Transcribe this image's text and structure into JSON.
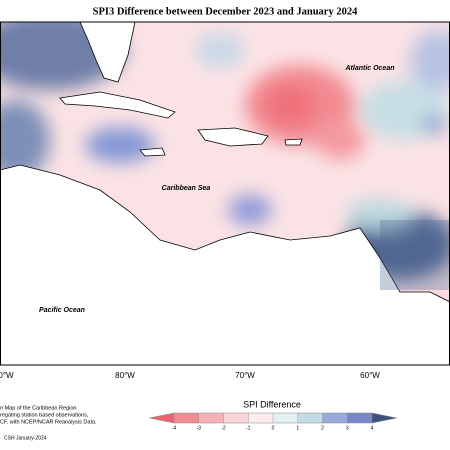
{
  "header": {
    "title": "SPI3 Difference between December 2023 and January 2024"
  },
  "map": {
    "labels": [
      "Atlantic Ocean",
      "Caribbean Sea",
      "Pacific Ocean"
    ],
    "longitude_labels": [
      "0°W",
      "80°W",
      "70°W",
      "60°W"
    ]
  },
  "legend": {
    "title": "SPI Difference",
    "ticks": [
      -4,
      -3,
      -2,
      -1,
      0,
      1,
      2,
      3,
      4
    ],
    "colors": [
      "#e9656f",
      "#f08c92",
      "#f6b3b7",
      "#fad4d6",
      "#fdecec",
      "#e4f1f3",
      "#c0dde3",
      "#9aa9dc",
      "#7887c8",
      "#5a6f99",
      "#3f4f7e"
    ]
  },
  "footer": {
    "notes": [
      "n Map of the Caribbean Region",
      "regating station based observations,",
      "CF, with NCEP/NCAR Reanalysis Data."
    ],
    "credit": "CSH January-2024"
  }
}
